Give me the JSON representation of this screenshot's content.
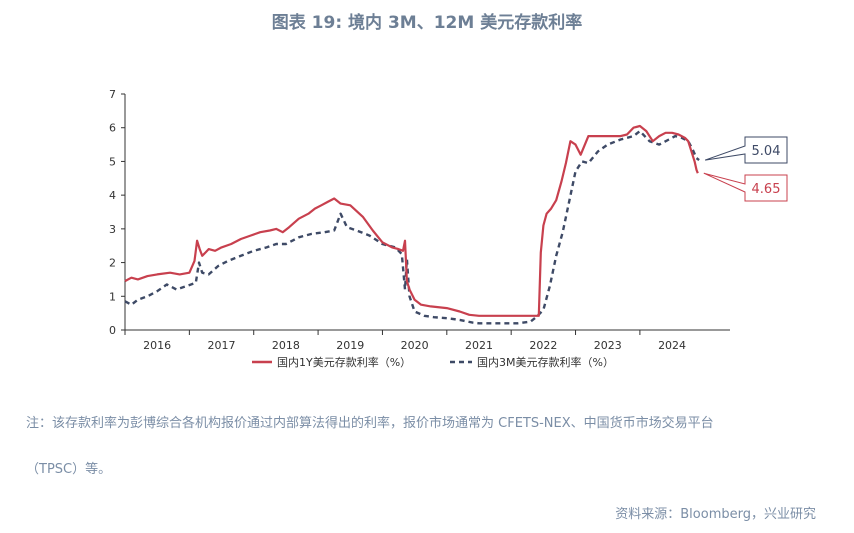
{
  "title": "图表 19: 境内 3M、12M 美元存款利率",
  "note_line1": "注：该存款利率为彭博综合各机构报价通过内部算法得出的利率，报价市场通常为 CFETS-NEX、中国货币市场交易平台",
  "note_line2": "（TPSC）等。",
  "source": "资料来源：Bloomberg，兴业研究",
  "colors": {
    "series_1y": "#c8404e",
    "series_3m": "#3e4a66",
    "axis": "#333333",
    "text": "#6d7f95"
  },
  "chart_data": {
    "type": "line",
    "title": "",
    "xlabel": "",
    "ylabel": "",
    "ylim": [
      0,
      7
    ],
    "yticks": [
      0,
      1,
      2,
      3,
      4,
      5,
      6,
      7
    ],
    "xlim": [
      2015.5,
      2024.9
    ],
    "xtick_labels": [
      "2016",
      "2017",
      "2018",
      "2019",
      "2020",
      "2021",
      "2022",
      "2023",
      "2024"
    ],
    "xtick_positions": [
      2016,
      2017,
      2018,
      2019,
      2020,
      2021,
      2022,
      2023,
      2024
    ],
    "legend_position": "bottom",
    "series": [
      {
        "name": "国内1Y美元存款利率（%）",
        "style": "solid",
        "end_label": "4.65",
        "x": [
          2015.5,
          2015.6,
          2015.7,
          2015.85,
          2016.0,
          2016.2,
          2016.35,
          2016.5,
          2016.58,
          2016.62,
          2016.66,
          2016.7,
          2016.75,
          2016.8,
          2016.9,
          2017.0,
          2017.15,
          2017.3,
          2017.45,
          2017.6,
          2017.75,
          2017.85,
          2017.95,
          2018.05,
          2018.2,
          2018.35,
          2018.45,
          2018.55,
          2018.65,
          2018.75,
          2018.85,
          2019.0,
          2019.2,
          2019.35,
          2019.5,
          2019.65,
          2019.75,
          2019.82,
          2019.85,
          2019.88,
          2019.92,
          2020.0,
          2020.1,
          2020.25,
          2020.5,
          2020.7,
          2020.85,
          2021.0,
          2021.2,
          2021.5,
          2021.8,
          2021.93,
          2021.96,
          2022.0,
          2022.05,
          2022.12,
          2022.2,
          2022.28,
          2022.35,
          2022.42,
          2022.5,
          2022.58,
          2022.7,
          2022.85,
          2023.0,
          2023.2,
          2023.3,
          2023.4,
          2023.5,
          2023.6,
          2023.7,
          2023.8,
          2023.9,
          2024.0,
          2024.1,
          2024.2,
          2024.25,
          2024.3,
          2024.35,
          2024.38,
          2024.4
        ],
        "y": [
          1.45,
          1.55,
          1.5,
          1.6,
          1.65,
          1.7,
          1.65,
          1.7,
          2.05,
          2.65,
          2.4,
          2.2,
          2.3,
          2.4,
          2.35,
          2.45,
          2.55,
          2.7,
          2.8,
          2.9,
          2.95,
          3.0,
          2.9,
          3.05,
          3.3,
          3.45,
          3.6,
          3.7,
          3.8,
          3.9,
          3.75,
          3.7,
          3.35,
          2.95,
          2.6,
          2.45,
          2.4,
          2.35,
          2.65,
          1.45,
          1.2,
          0.9,
          0.75,
          0.7,
          0.65,
          0.55,
          0.45,
          0.42,
          0.42,
          0.42,
          0.42,
          0.42,
          2.3,
          3.1,
          3.45,
          3.6,
          3.85,
          4.4,
          4.95,
          5.6,
          5.5,
          5.2,
          5.75,
          5.75,
          5.75,
          5.75,
          5.8,
          6.0,
          6.05,
          5.9,
          5.6,
          5.75,
          5.85,
          5.85,
          5.8,
          5.7,
          5.6,
          5.3,
          5.0,
          4.75,
          4.65
        ]
      },
      {
        "name": "国内3M美元存款利率（%）",
        "style": "dashed",
        "end_label": "5.04",
        "x": [
          2015.5,
          2015.6,
          2015.7,
          2015.85,
          2016.0,
          2016.15,
          2016.3,
          2016.45,
          2016.6,
          2016.65,
          2016.7,
          2016.8,
          2016.95,
          2017.1,
          2017.3,
          2017.5,
          2017.7,
          2017.85,
          2018.0,
          2018.2,
          2018.4,
          2018.6,
          2018.75,
          2018.85,
          2018.95,
          2019.1,
          2019.3,
          2019.5,
          2019.7,
          2019.8,
          2019.85,
          2019.88,
          2019.92,
          2020.0,
          2020.15,
          2020.3,
          2020.5,
          2020.7,
          2020.9,
          2021.0,
          2021.3,
          2021.6,
          2021.8,
          2021.9,
          2022.0,
          2022.1,
          2022.2,
          2022.3,
          2022.4,
          2022.5,
          2022.6,
          2022.7,
          2022.85,
          2023.0,
          2023.2,
          2023.4,
          2023.5,
          2023.65,
          2023.8,
          2023.95,
          2024.05,
          2024.15,
          2024.25,
          2024.32,
          2024.38,
          2024.42
        ],
        "y": [
          0.85,
          0.75,
          0.9,
          1.0,
          1.15,
          1.35,
          1.2,
          1.3,
          1.4,
          2.0,
          1.7,
          1.65,
          1.9,
          2.05,
          2.2,
          2.35,
          2.45,
          2.55,
          2.55,
          2.75,
          2.85,
          2.9,
          2.95,
          3.45,
          3.05,
          2.95,
          2.8,
          2.55,
          2.45,
          2.25,
          1.2,
          2.1,
          1.0,
          0.55,
          0.42,
          0.38,
          0.35,
          0.3,
          0.22,
          0.2,
          0.2,
          0.2,
          0.25,
          0.4,
          0.6,
          1.3,
          2.2,
          2.9,
          3.8,
          4.7,
          5.0,
          4.95,
          5.3,
          5.5,
          5.65,
          5.75,
          5.9,
          5.6,
          5.5,
          5.65,
          5.75,
          5.7,
          5.6,
          5.35,
          5.1,
          5.04
        ]
      }
    ]
  }
}
